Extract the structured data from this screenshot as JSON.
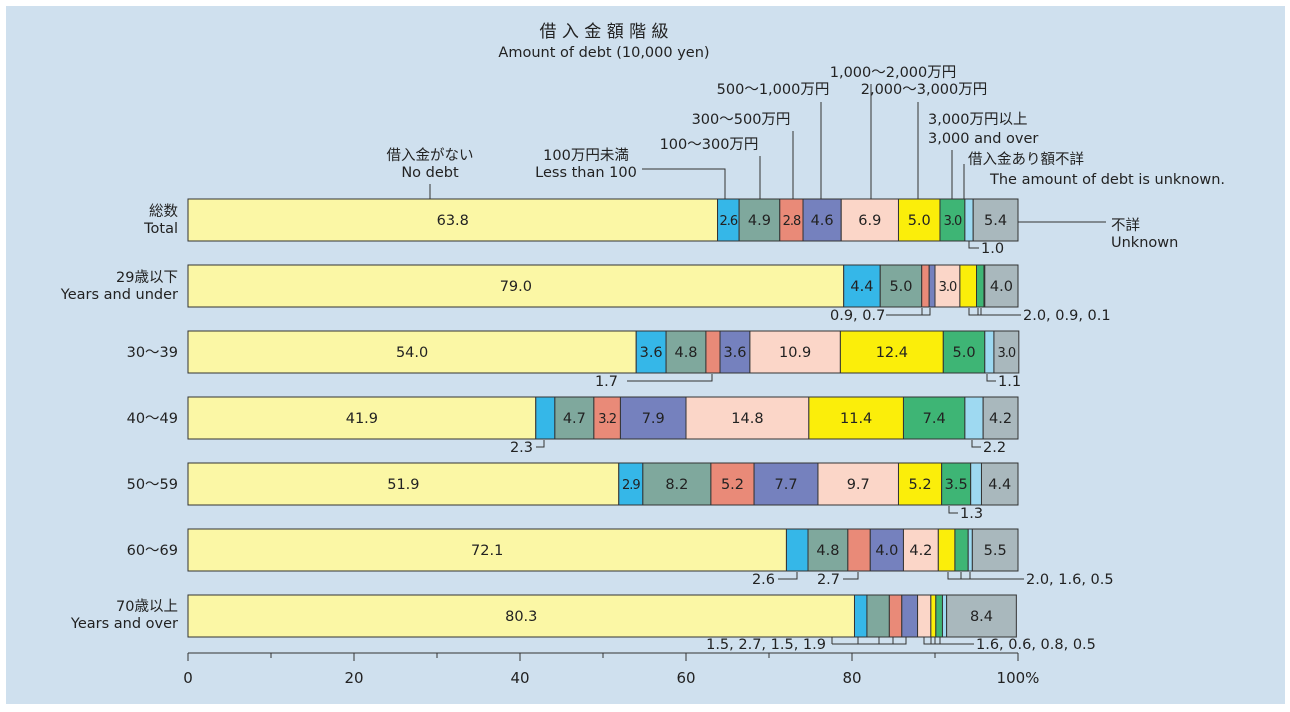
{
  "chart_data": {
    "type": "bar",
    "orientation": "horizontal",
    "stacked": true,
    "title": "借 入 金 額 階 級",
    "subtitle": "Amount of debt (10,000 yen)",
    "xlim": [
      0,
      100
    ],
    "x_ticks": [
      "0",
      "20",
      "40",
      "60",
      "80",
      "100%"
    ],
    "categories": [
      {
        "jp": "総数",
        "en": "Total"
      },
      {
        "jp": "29歳以下",
        "en": "Years and under"
      },
      {
        "jp": "30〜39",
        "en": ""
      },
      {
        "jp": "40〜49",
        "en": ""
      },
      {
        "jp": "50〜59",
        "en": ""
      },
      {
        "jp": "60〜69",
        "en": ""
      },
      {
        "jp": "70歳以上",
        "en": "Years and over"
      }
    ],
    "series": [
      {
        "name": "借入金がない No debt",
        "color": "#fbf7a5",
        "values": [
          63.8,
          79.0,
          54.0,
          41.9,
          51.9,
          72.1,
          80.3
        ],
        "labels": [
          "63.8",
          "79.0",
          "54.0",
          "41.9",
          "51.9",
          "72.1",
          "80.3"
        ]
      },
      {
        "name": "100万円未満 Less than 100",
        "color": "#35b7e8",
        "values": [
          2.6,
          4.4,
          3.6,
          2.3,
          2.9,
          2.6,
          1.5
        ],
        "labels": [
          "2.6",
          "4.4",
          "3.6",
          "",
          "2.9",
          "",
          ""
        ]
      },
      {
        "name": "100〜300万円",
        "color": "#7fa89d",
        "values": [
          4.9,
          5.0,
          4.8,
          4.7,
          8.2,
          4.8,
          2.7
        ],
        "labels": [
          "4.9",
          "5.0",
          "4.8",
          "4.7",
          "8.2",
          "4.8",
          ""
        ]
      },
      {
        "name": "300〜500万円",
        "color": "#e98a78",
        "values": [
          2.8,
          0.9,
          1.7,
          3.2,
          5.2,
          2.7,
          1.5
        ],
        "labels": [
          "2.8",
          "",
          "",
          "3.2",
          "5.2",
          "",
          ""
        ]
      },
      {
        "name": "500〜1,000万円",
        "color": "#7581be",
        "values": [
          4.6,
          0.7,
          3.6,
          7.9,
          7.7,
          4.0,
          1.9
        ],
        "labels": [
          "4.6",
          "",
          "3.6",
          "7.9",
          "7.7",
          "4.0",
          ""
        ]
      },
      {
        "name": "1,000〜2,000万円",
        "color": "#fbd6c8",
        "values": [
          6.9,
          3.0,
          10.9,
          14.8,
          9.7,
          4.2,
          1.6
        ],
        "labels": [
          "6.9",
          "3.0",
          "10.9",
          "14.8",
          "9.7",
          "4.2",
          ""
        ]
      },
      {
        "name": "2,000〜3,000万円",
        "color": "#fbee0a",
        "values": [
          5.0,
          2.0,
          12.4,
          11.4,
          5.2,
          2.0,
          0.6
        ],
        "labels": [
          "5.0",
          "",
          "12.4",
          "11.4",
          "5.2",
          "",
          ""
        ]
      },
      {
        "name": "3,000万円以上 3,000 and over",
        "color": "#3eb575",
        "values": [
          3.0,
          0.9,
          5.0,
          7.4,
          3.5,
          1.6,
          0.8
        ],
        "labels": [
          "3.0",
          "",
          "5.0",
          "7.4",
          "3.5",
          "",
          ""
        ]
      },
      {
        "name": "借入金あり額不詳 The amount of debt is unknown.",
        "color": "#9ed9f1",
        "values": [
          1.0,
          0.1,
          1.1,
          2.2,
          1.3,
          0.5,
          0.5
        ],
        "labels": [
          "",
          "",
          "",
          "",
          "",
          "",
          ""
        ]
      },
      {
        "name": "不詳 Unknown",
        "color": "#a9b8bd",
        "values": [
          5.4,
          4.0,
          3.0,
          4.2,
          4.4,
          5.5,
          8.4
        ],
        "labels": [
          "5.4",
          "4.0",
          "3.0",
          "4.2",
          "4.4",
          "5.5",
          "8.4"
        ]
      }
    ],
    "legend_labels": {
      "no_debt_jp": "借入金がない",
      "no_debt_en": "No debt",
      "lt100_jp": "100万円未満",
      "lt100_en": "Less than 100",
      "r100_300": "100〜300万円",
      "r300_500": "300〜500万円",
      "r500_1000": "500〜1,000万円",
      "r1000_2000": "1,000〜2,000万円",
      "r2000_3000": "2,000〜3,000万円",
      "r3000_jp": "3,000万円以上",
      "r3000_en": "3,000 and over",
      "amount_unknown_jp": "借入金あり額不詳",
      "amount_unknown_en": "The amount of debt is unknown.",
      "unknown_jp": "不詳",
      "unknown_en": "Unknown"
    },
    "callouts": {
      "total_amount_unknown": "1.0",
      "u29_a": "0.9, 0.7",
      "u29_b": "2.0, 0.9, 0.1",
      "r30_a": "1.7",
      "r30_b": "1.1",
      "r40_a": "2.3",
      "r40_b": "2.2",
      "r50_b": "1.3",
      "r60_a": "2.6",
      "r60_b": "2.7",
      "r60_c": "2.0, 1.6, 0.5",
      "r70_a": "1.5, 2.7, 1.5, 1.9",
      "r70_b": "1.6, 0.6, 0.8, 0.5"
    }
  }
}
